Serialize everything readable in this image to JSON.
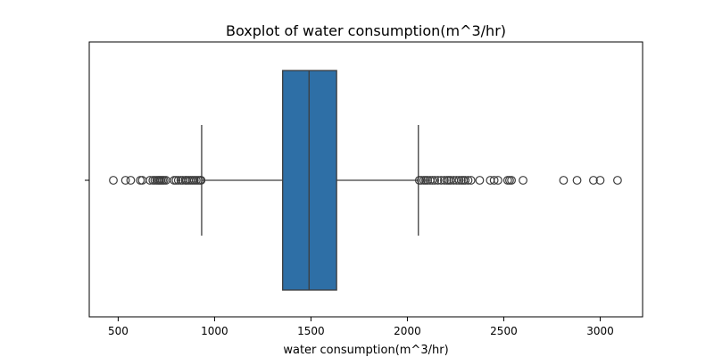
{
  "chart_data": {
    "type": "box",
    "title": "Boxplot of water consumption(m^3/hr)",
    "xlabel": "water consumption(m^3/hr)",
    "ylabel": "",
    "orientation": "horizontal",
    "xlim": [
      350,
      3220
    ],
    "xticks": [
      500,
      1000,
      1500,
      2000,
      2500,
      3000
    ],
    "tick_labels": [
      "500",
      "1000",
      "1500",
      "2000",
      "2500",
      "3000"
    ],
    "grid": false,
    "box": {
      "whisker_low": 933,
      "q1": 1353,
      "median": 1490,
      "q3": 1633,
      "whisker_high": 2057,
      "fill_color": "#2e6fa6",
      "line_color": "#3d3d3d"
    },
    "outliers": [
      475,
      538,
      565,
      615,
      625,
      665,
      680,
      690,
      700,
      708,
      715,
      722,
      730,
      738,
      748,
      790,
      800,
      812,
      825,
      835,
      848,
      855,
      865,
      875,
      885,
      895,
      905,
      915,
      925,
      930,
      2062,
      2072,
      2085,
      2095,
      2105,
      2118,
      2130,
      2142,
      2158,
      2175,
      2192,
      2205,
      2215,
      2225,
      2240,
      2255,
      2268,
      2280,
      2290,
      2300,
      2315,
      2330,
      2375,
      2430,
      2450,
      2470,
      2520,
      2530,
      2540,
      2600,
      2810,
      2880,
      2965,
      3000,
      3090
    ]
  }
}
